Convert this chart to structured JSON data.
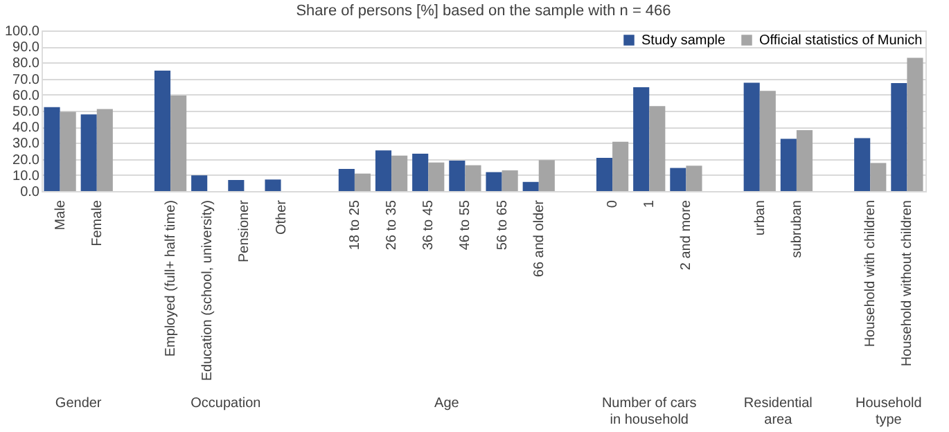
{
  "chart_data": {
    "type": "bar",
    "title": "Share of persons [%] based on the sample with n = 466",
    "categories": [
      "Male",
      "Female",
      null,
      "Employed (full+ half time)",
      "Education (school, university)",
      "Pensioner",
      "Other",
      null,
      "18 to 25",
      "26 to 35",
      "36 to 45",
      "46 to 55",
      "56 to 65",
      "66 and older",
      null,
      "0",
      "1",
      "2 and more",
      null,
      "urban",
      "subruban",
      null,
      "Household with children",
      "Household without children"
    ],
    "series": [
      {
        "name": "Study sample",
        "color": "#2f5597",
        "values": [
          52.3,
          47.7,
          null,
          75.0,
          9.8,
          6.9,
          7.2,
          null,
          13.8,
          25.3,
          23.3,
          19.0,
          11.8,
          5.7,
          null,
          20.7,
          64.7,
          14.4,
          null,
          67.5,
          32.5,
          null,
          33.0,
          67.2
        ]
      },
      {
        "name": "Official statistics of Munich",
        "color": "#a5a5a5",
        "values": [
          49.4,
          51.1,
          null,
          59.5,
          null,
          null,
          null,
          null,
          10.9,
          22.1,
          17.8,
          16.1,
          12.9,
          19.3,
          null,
          30.7,
          52.9,
          15.8,
          null,
          62.4,
          37.9,
          null,
          17.5,
          83.0
        ]
      }
    ],
    "annotations": [
      "Gender",
      "Occupation",
      "Age",
      "Number of cars in household",
      "Residential area",
      "Household type"
    ],
    "ylim": [
      0,
      100
    ],
    "yticks": [
      {
        "value": 0,
        "label": "0.0"
      },
      {
        "value": 10,
        "label": "10.0"
      },
      {
        "value": 20,
        "label": "20.0"
      },
      {
        "value": 30,
        "label": "30.0"
      },
      {
        "value": 40,
        "label": "40.0"
      },
      {
        "value": 50,
        "label": "50.0"
      },
      {
        "value": 60,
        "label": "60.0"
      },
      {
        "value": 70,
        "label": "70.0"
      },
      {
        "value": 80,
        "label": "80.0"
      },
      {
        "value": 90,
        "label": "90.0"
      },
      {
        "value": 100,
        "label": "100.0"
      }
    ],
    "grid": "y",
    "legend": "top right"
  }
}
